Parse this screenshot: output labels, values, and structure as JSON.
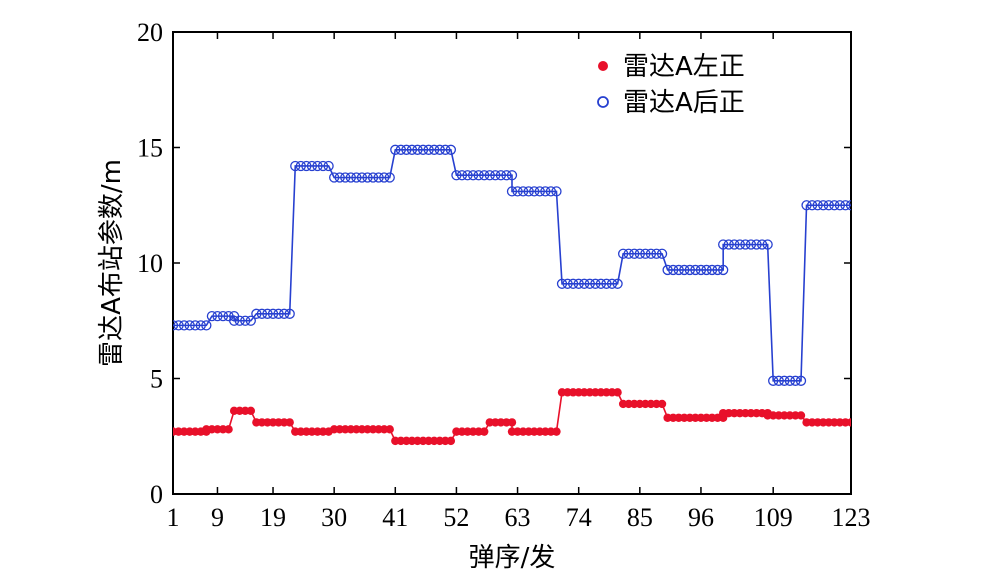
{
  "chart_data": {
    "type": "line",
    "title": "",
    "xlabel": "弹序/发",
    "ylabel": "雷达A布站参数/m",
    "xlim": [
      1,
      123
    ],
    "ylim": [
      0,
      20
    ],
    "x_ticks": [
      "1",
      "9",
      "19",
      "30",
      "41",
      "52",
      "63",
      "74",
      "85",
      "96",
      "109",
      "123"
    ],
    "y_ticks": [
      "0",
      "5",
      "10",
      "15",
      "20"
    ],
    "grid": false,
    "legend_position": "top-right",
    "series": [
      {
        "name": "雷达A左正",
        "color": "#e8102a",
        "marker": "filled-circle",
        "segments": [
          {
            "x_start": 1,
            "x_end": 7,
            "y": 2.7
          },
          {
            "x_start": 7,
            "x_end": 11,
            "y": 2.8
          },
          {
            "x_start": 12,
            "x_end": 15,
            "y": 3.6
          },
          {
            "x_start": 16,
            "x_end": 22,
            "y": 3.1
          },
          {
            "x_start": 23,
            "x_end": 29,
            "y": 2.7
          },
          {
            "x_start": 30,
            "x_end": 40,
            "y": 2.8
          },
          {
            "x_start": 41,
            "x_end": 51,
            "y": 2.3
          },
          {
            "x_start": 52,
            "x_end": 57,
            "y": 2.7
          },
          {
            "x_start": 58,
            "x_end": 62,
            "y": 3.1
          },
          {
            "x_start": 62,
            "x_end": 70,
            "y": 2.7
          },
          {
            "x_start": 71,
            "x_end": 81,
            "y": 4.4
          },
          {
            "x_start": 82,
            "x_end": 89,
            "y": 3.9
          },
          {
            "x_start": 90,
            "x_end": 100,
            "y": 3.3
          },
          {
            "x_start": 100,
            "x_end": 108,
            "y": 3.5
          },
          {
            "x_start": 108,
            "x_end": 114,
            "y": 3.4
          },
          {
            "x_start": 115,
            "x_end": 123,
            "y": 3.1
          }
        ]
      },
      {
        "name": "雷达A后正",
        "color": "#2740d0",
        "marker": "open-circle",
        "segments": [
          {
            "x_start": 1,
            "x_end": 7,
            "y": 7.3
          },
          {
            "x_start": 8,
            "x_end": 12,
            "y": 7.7
          },
          {
            "x_start": 12,
            "x_end": 15,
            "y": 7.5
          },
          {
            "x_start": 16,
            "x_end": 22,
            "y": 7.8
          },
          {
            "x_start": 23,
            "x_end": 29,
            "y": 14.2
          },
          {
            "x_start": 30,
            "x_end": 40,
            "y": 13.7
          },
          {
            "x_start": 41,
            "x_end": 51,
            "y": 14.9
          },
          {
            "x_start": 52,
            "x_end": 62,
            "y": 13.8
          },
          {
            "x_start": 62,
            "x_end": 70,
            "y": 13.1
          },
          {
            "x_start": 71,
            "x_end": 81,
            "y": 9.1
          },
          {
            "x_start": 82,
            "x_end": 89,
            "y": 10.4
          },
          {
            "x_start": 90,
            "x_end": 100,
            "y": 9.7
          },
          {
            "x_start": 100,
            "x_end": 108,
            "y": 10.8
          },
          {
            "x_start": 109,
            "x_end": 114,
            "y": 4.9
          },
          {
            "x_start": 115,
            "x_end": 123,
            "y": 12.5
          }
        ]
      }
    ]
  }
}
